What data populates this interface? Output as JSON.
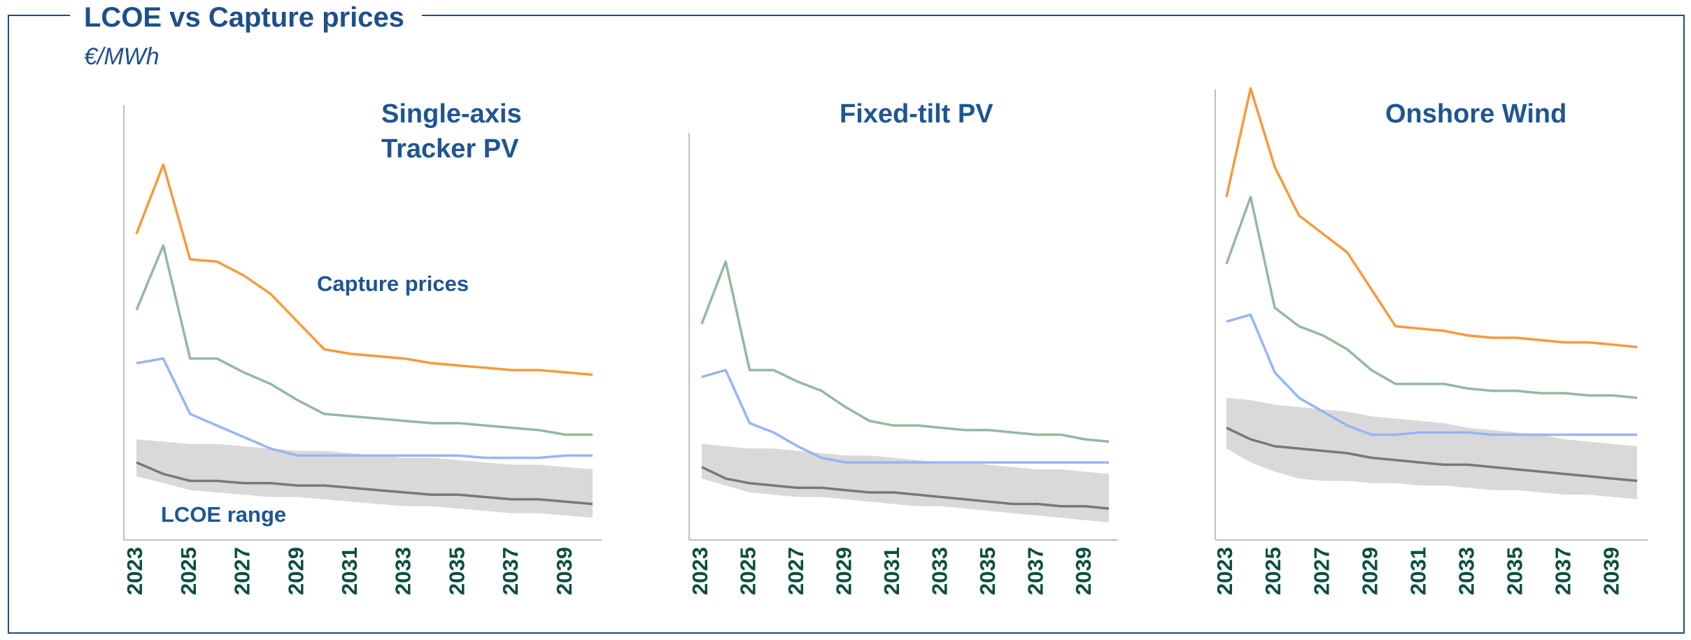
{
  "title": "LCOE vs Capture prices",
  "subtitle": "€/MWh",
  "chart_data": [
    {
      "type": "line",
      "title": "Single-axis Tracker PV",
      "categories": [
        "2023",
        null,
        "2025",
        null,
        "2027",
        null,
        "2029",
        null,
        "2031",
        null,
        "2033",
        null,
        "2035",
        null,
        "2037",
        null,
        "2039",
        null
      ],
      "ylim": [
        0,
        200
      ],
      "annotations": [
        "Capture prices",
        "LCOE range"
      ],
      "band": {
        "color": "#d9d9d9",
        "low": [
          27,
          24,
          21,
          20,
          19,
          18,
          18,
          17,
          16,
          15,
          14,
          14,
          13,
          12,
          11,
          11,
          10,
          9
        ],
        "high": [
          43,
          42,
          41,
          41,
          40,
          39,
          38,
          38,
          37,
          36,
          35,
          35,
          34,
          33,
          32,
          32,
          31,
          30
        ]
      },
      "series": [
        {
          "color": "#f79a3a",
          "values": [
            132,
            162,
            121,
            120,
            114,
            106,
            94,
            82,
            80,
            79,
            78,
            76,
            75,
            74,
            73,
            73,
            72,
            71
          ]
        },
        {
          "color": "#93b99d",
          "values": [
            99,
            127,
            78,
            78,
            72,
            67,
            60,
            54,
            53,
            52,
            51,
            50,
            50,
            49,
            48,
            47,
            45,
            45
          ]
        },
        {
          "color": "#95b6f4",
          "values": [
            76,
            78,
            54,
            49,
            44,
            39,
            36,
            36,
            36,
            36,
            36,
            36,
            36,
            35,
            35,
            35,
            36,
            36
          ]
        },
        {
          "color": "#787878",
          "values": [
            33,
            28,
            25,
            25,
            24,
            24,
            23,
            23,
            22,
            21,
            20,
            19,
            19,
            18,
            17,
            17,
            16,
            15
          ]
        }
      ]
    },
    {
      "type": "line",
      "title": "Fixed-tilt PV",
      "categories": [
        "2023",
        null,
        "2025",
        null,
        "2027",
        null,
        "2029",
        null,
        "2031",
        null,
        "2033",
        null,
        "2035",
        null,
        "2037",
        null,
        "2039",
        null
      ],
      "ylim": [
        0,
        200
      ],
      "annotations": [],
      "band": {
        "color": "#d9d9d9",
        "low": [
          26,
          23,
          20,
          19,
          18,
          18,
          17,
          16,
          15,
          14,
          14,
          13,
          12,
          11,
          10,
          9,
          8,
          7
        ],
        "high": [
          41,
          40,
          39,
          39,
          38,
          37,
          36,
          36,
          35,
          34,
          33,
          33,
          32,
          31,
          30,
          30,
          29,
          28
        ]
      },
      "series": [
        {
          "color": "#93b99d",
          "values": [
            93,
            120,
            73,
            73,
            68,
            64,
            57,
            51,
            49,
            49,
            48,
            47,
            47,
            46,
            45,
            45,
            43,
            42
          ]
        },
        {
          "color": "#95b6f4",
          "values": [
            70,
            73,
            50,
            46,
            40,
            35,
            33,
            33,
            33,
            33,
            33,
            33,
            33,
            33,
            33,
            33,
            33,
            33
          ]
        },
        {
          "color": "#787878",
          "values": [
            31,
            26,
            24,
            23,
            22,
            22,
            21,
            20,
            20,
            19,
            18,
            17,
            16,
            15,
            15,
            14,
            14,
            13
          ]
        }
      ]
    },
    {
      "type": "line",
      "title": "Onshore Wind",
      "categories": [
        "2023",
        null,
        "2025",
        null,
        "2027",
        null,
        "2029",
        null,
        "2031",
        null,
        "2033",
        null,
        "2035",
        null,
        "2037",
        null,
        "2039",
        null
      ],
      "ylim": [
        0,
        200
      ],
      "annotations": [],
      "band": {
        "color": "#d9d9d9",
        "low": [
          39,
          33,
          29,
          26,
          25,
          25,
          24,
          24,
          23,
          23,
          22,
          21,
          21,
          20,
          19,
          19,
          18,
          17
        ],
        "high": [
          61,
          60,
          58,
          57,
          56,
          55,
          53,
          52,
          51,
          50,
          48,
          47,
          46,
          45,
          43,
          42,
          41,
          40
        ]
      },
      "series": [
        {
          "color": "#f79a3a",
          "values": [
            148,
            195,
            161,
            140,
            132,
            124,
            108,
            92,
            91,
            90,
            88,
            87,
            87,
            86,
            85,
            85,
            84,
            83
          ]
        },
        {
          "color": "#93b99d",
          "values": [
            119,
            148,
            100,
            92,
            88,
            82,
            73,
            67,
            67,
            67,
            65,
            64,
            64,
            63,
            63,
            62,
            62,
            61
          ]
        },
        {
          "color": "#95b6f4",
          "values": [
            94,
            97,
            72,
            61,
            55,
            49,
            45,
            45,
            46,
            46,
            46,
            45,
            45,
            45,
            45,
            45,
            45,
            45
          ]
        },
        {
          "color": "#787878",
          "values": [
            48,
            43,
            40,
            39,
            38,
            37,
            35,
            34,
            33,
            32,
            32,
            31,
            30,
            29,
            28,
            27,
            26,
            25
          ]
        }
      ]
    }
  ]
}
